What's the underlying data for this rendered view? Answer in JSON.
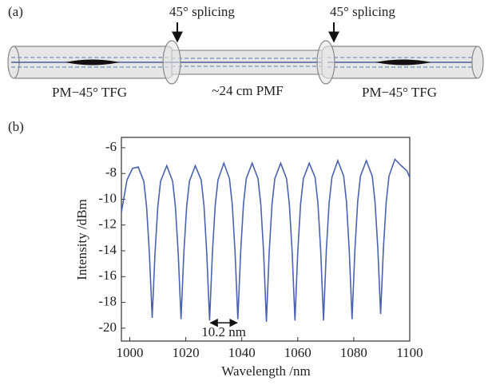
{
  "panel_a": {
    "label": "(a)",
    "splice_left": "45° splicing",
    "splice_right": "45° splicing",
    "fiber_left": "PM−45° TFG",
    "fiber_middle": "~24 cm PMF",
    "fiber_right": "PM−45° TFG"
  },
  "chart_data": {
    "type": "line",
    "panel_label": "(b)",
    "x_label": "Wavelength /nm",
    "y_label": "Intensity /dBm",
    "xlim": [
      997,
      1100
    ],
    "ylim": [
      -21,
      -5.2
    ],
    "xticks": [
      1000,
      1020,
      1040,
      1060,
      1080,
      1100
    ],
    "yticks": [
      -6,
      -8,
      -10,
      -12,
      -14,
      -16,
      -18,
      -20
    ],
    "annotation": "10.2 nm",
    "series": [
      {
        "color": "#4a62b0",
        "x": [
          997,
          999,
          1001,
          1003,
          1005,
          1006,
          1007,
          1008,
          1009,
          1010,
          1011,
          1013.2,
          1015.3,
          1016.3,
          1017.3,
          1018.3,
          1019.3,
          1020.3,
          1021.3,
          1023.4,
          1025.5,
          1026.5,
          1027.5,
          1028.5,
          1029.5,
          1030.5,
          1031.5,
          1033.6,
          1035.6,
          1036.6,
          1037.6,
          1038.6,
          1039.6,
          1040.6,
          1041.6,
          1043.7,
          1045.8,
          1046.8,
          1047.8,
          1048.8,
          1049.8,
          1050.8,
          1051.8,
          1053.9,
          1056,
          1057,
          1058,
          1059,
          1060,
          1061,
          1062,
          1064.1,
          1066.2,
          1067.2,
          1068.2,
          1069.2,
          1070.2,
          1071.2,
          1072.2,
          1074.3,
          1076.4,
          1077.4,
          1078.4,
          1079.4,
          1080.4,
          1081.4,
          1082.4,
          1084.5,
          1086.6,
          1087.6,
          1088.6,
          1089.6,
          1090.6,
          1091.6,
          1092.6,
          1094.7,
          1097,
          1099,
          1100
        ],
        "values": [
          -11,
          -8.5,
          -7.6,
          -7.5,
          -8.6,
          -10.6,
          -14.2,
          -19.2,
          -14.2,
          -10.6,
          -8.6,
          -7.4,
          -8.6,
          -10.6,
          -14.2,
          -19.3,
          -14.2,
          -10.6,
          -8.6,
          -7.4,
          -8.5,
          -10.5,
          -14.2,
          -19.4,
          -14.2,
          -10.5,
          -8.5,
          -7.2,
          -8.4,
          -10.4,
          -14.1,
          -19.3,
          -14.1,
          -10.4,
          -8.4,
          -7.2,
          -8.4,
          -10.4,
          -14.1,
          -19.5,
          -14.1,
          -10.4,
          -8.4,
          -7.2,
          -8.4,
          -10.4,
          -14.1,
          -19.4,
          -14.1,
          -10.4,
          -8.4,
          -7.2,
          -8.3,
          -10.3,
          -14,
          -19.4,
          -14,
          -10.3,
          -8.3,
          -7,
          -8.2,
          -10.2,
          -14,
          -19.3,
          -14,
          -10.2,
          -8.2,
          -7,
          -8.2,
          -10.2,
          -13.8,
          -18.9,
          -13.8,
          -10.2,
          -8.2,
          -6.9,
          -7.4,
          -7.8,
          -8.3
        ]
      }
    ]
  }
}
